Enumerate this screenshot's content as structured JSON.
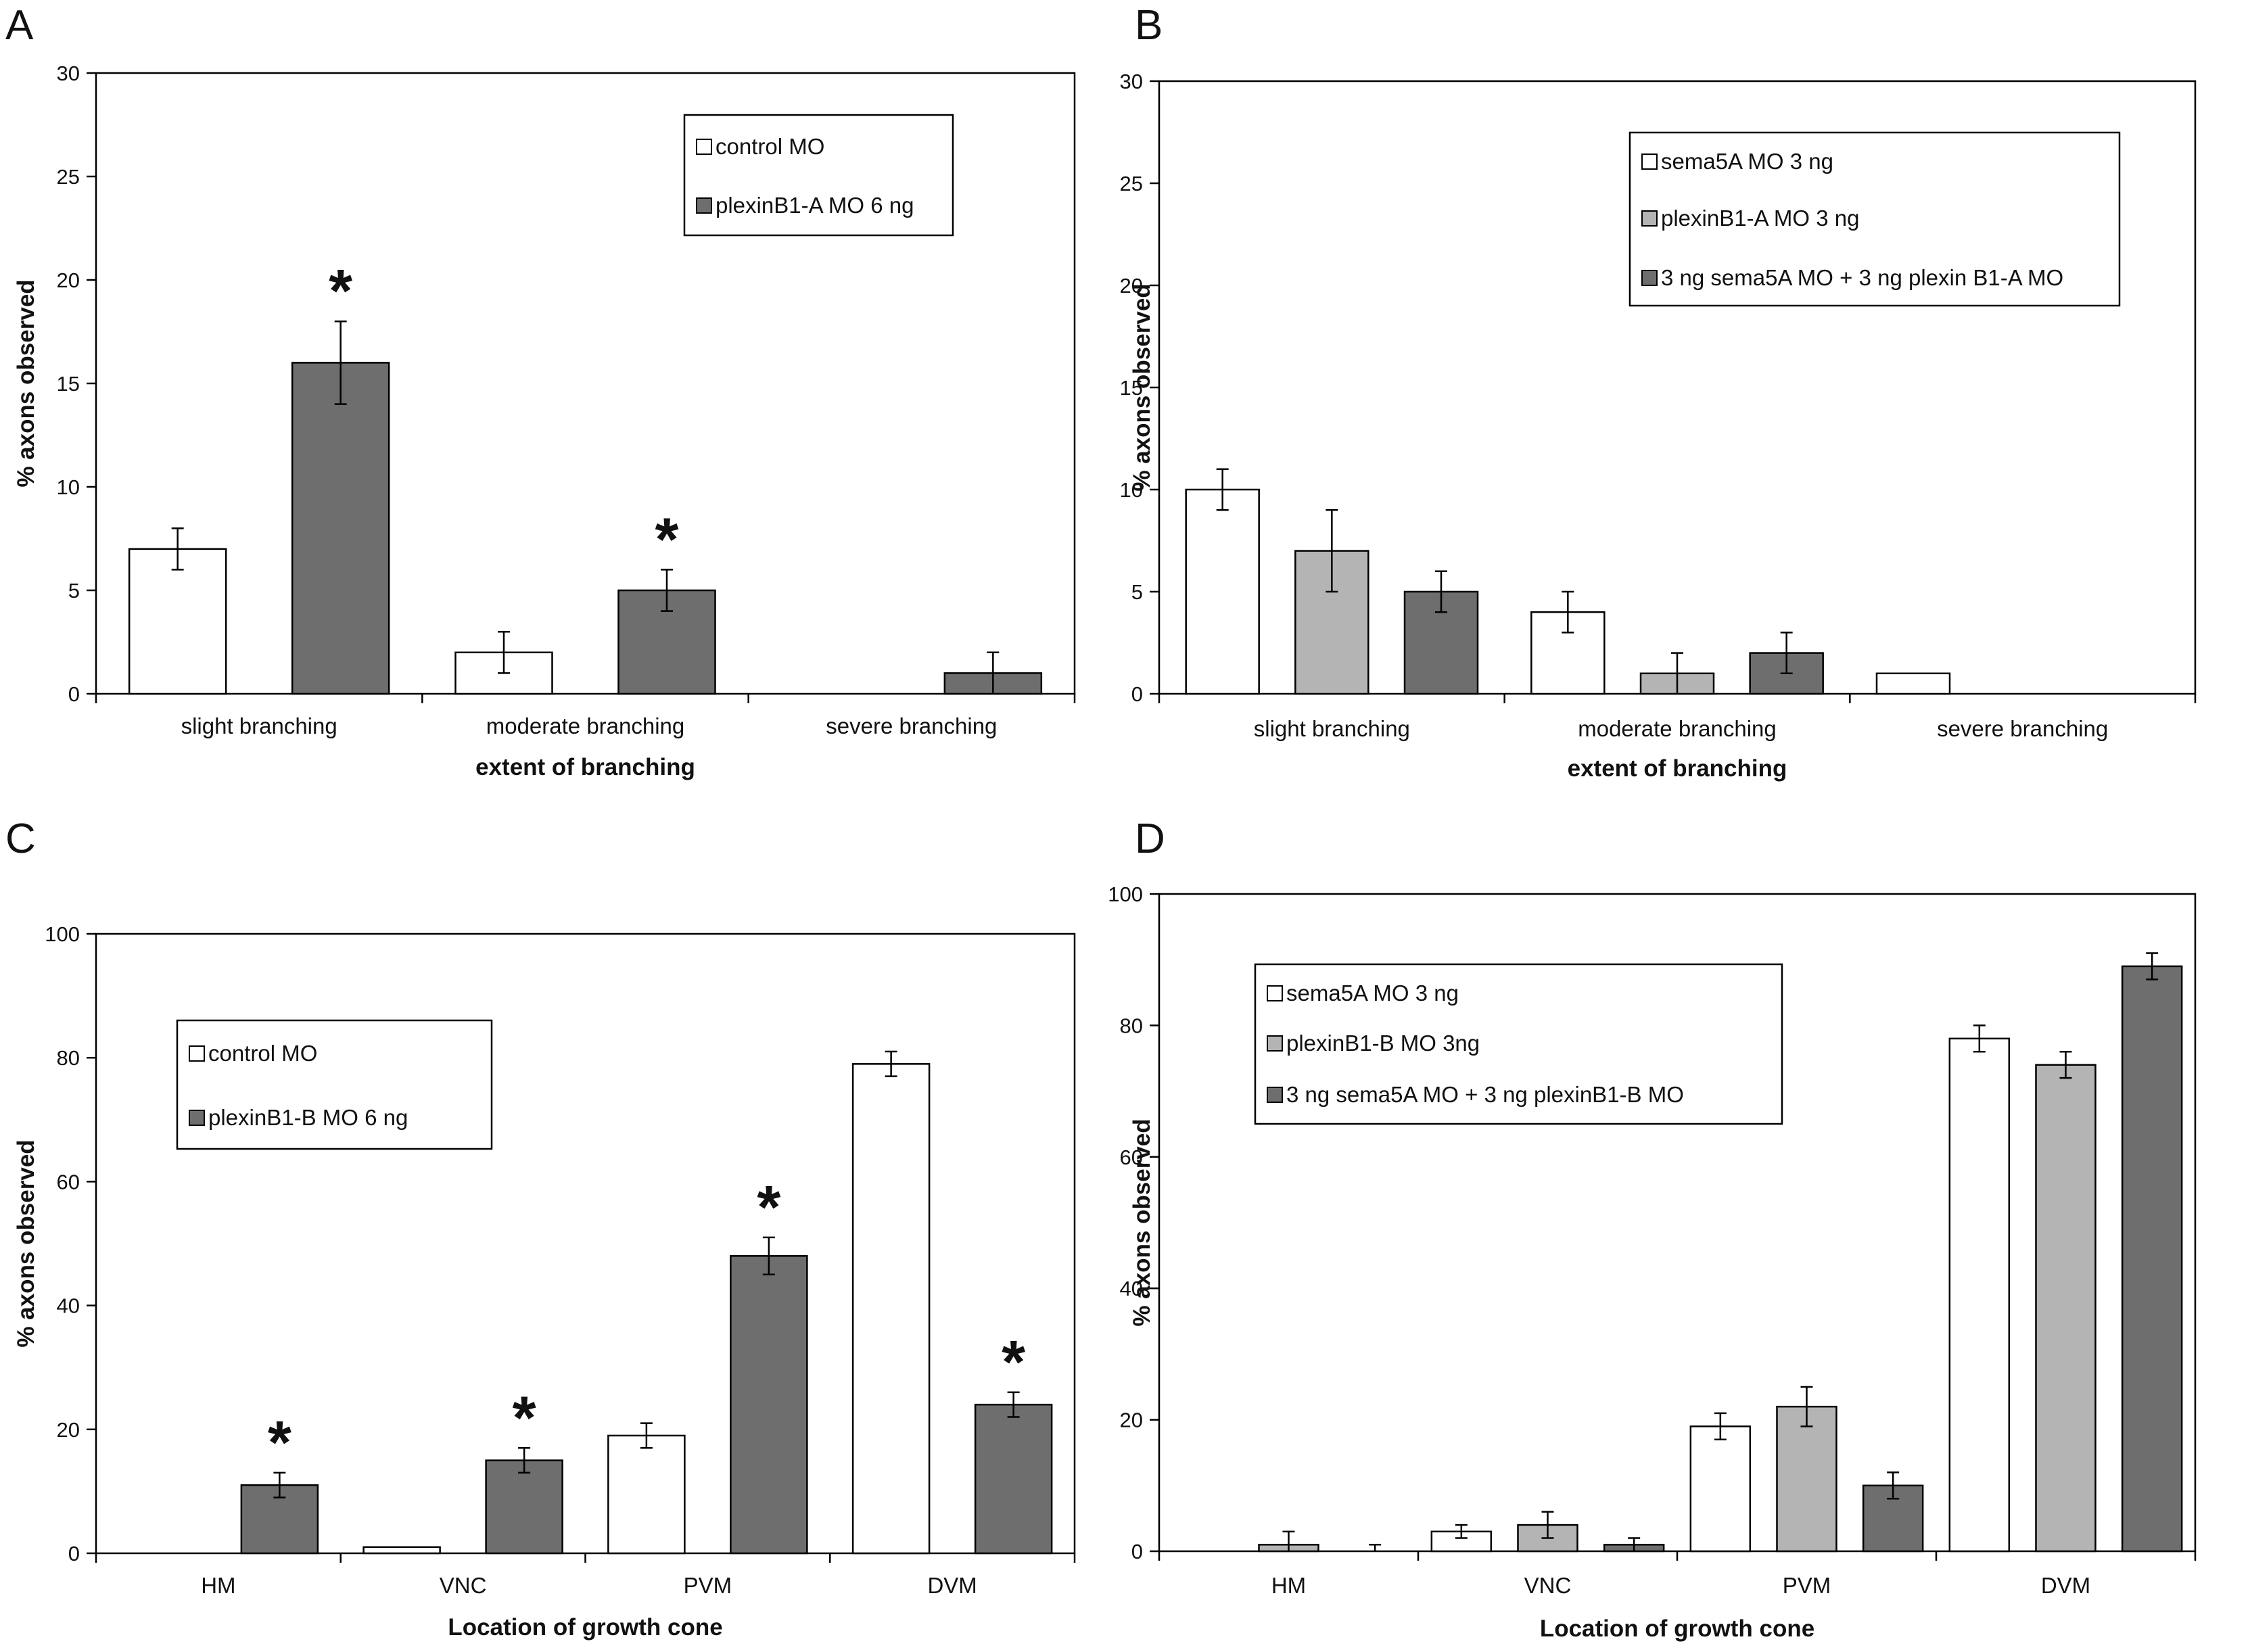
{
  "colors": {
    "white": "#ffffff",
    "light_gray": "#b4b4b4",
    "dark_gray": "#6e6e6e",
    "axis": "#000000"
  },
  "chart_data": [
    {
      "panel": "A",
      "type": "bar",
      "ylabel": "% axons observed",
      "xlabel": "extent of branching",
      "ylim": [
        0,
        30
      ],
      "yticks": [
        0,
        5,
        10,
        15,
        20,
        25,
        30
      ],
      "categories": [
        "slight branching",
        "moderate branching",
        "severe branching"
      ],
      "series": [
        {
          "name": "control MO",
          "color": "white",
          "values": [
            7,
            2,
            0
          ],
          "errors": [
            1,
            1,
            0
          ]
        },
        {
          "name": "plexinB1-A MO 6 ng",
          "color": "dark_gray",
          "values": [
            16,
            5,
            1
          ],
          "errors": [
            2,
            1,
            1
          ]
        }
      ],
      "significance": [
        {
          "series": 1,
          "category": 0,
          "label": "*"
        },
        {
          "series": 1,
          "category": 1,
          "label": "*"
        }
      ],
      "legend_position": "top-right"
    },
    {
      "panel": "B",
      "type": "bar",
      "ylabel": "% axons observed",
      "xlabel": "extent of branching",
      "ylim": [
        0,
        30
      ],
      "yticks": [
        0,
        5,
        10,
        15,
        20,
        25,
        30
      ],
      "categories": [
        "slight branching",
        "moderate branching",
        "severe branching"
      ],
      "series": [
        {
          "name": "sema5A MO 3 ng",
          "color": "white",
          "values": [
            10,
            4,
            1
          ],
          "errors": [
            1,
            1,
            0
          ]
        },
        {
          "name": "plexinB1-A MO 3 ng",
          "color": "light_gray",
          "values": [
            7,
            1,
            0
          ],
          "errors": [
            2,
            1,
            0
          ]
        },
        {
          "name": "3 ng sema5A MO + 3 ng plexin B1-A MO",
          "color": "dark_gray",
          "values": [
            5,
            2,
            0
          ],
          "errors": [
            1,
            1,
            0
          ]
        }
      ],
      "significance": [],
      "legend_position": "top-right"
    },
    {
      "panel": "C",
      "type": "bar",
      "ylabel": "% axons observed",
      "xlabel": "Location of growth cone",
      "ylim": [
        0,
        100
      ],
      "yticks": [
        0,
        20,
        40,
        60,
        80,
        100
      ],
      "categories": [
        "HM",
        "VNC",
        "PVM",
        "DVM"
      ],
      "series": [
        {
          "name": "control MO",
          "color": "white",
          "values": [
            0,
            1,
            19,
            79
          ],
          "errors": [
            0,
            0,
            2,
            2
          ]
        },
        {
          "name": "plexinB1-B MO 6 ng",
          "color": "dark_gray",
          "values": [
            11,
            15,
            48,
            24
          ],
          "errors": [
            2,
            2,
            3,
            2
          ]
        }
      ],
      "significance": [
        {
          "series": 1,
          "category": 0,
          "label": "*"
        },
        {
          "series": 1,
          "category": 1,
          "label": "*"
        },
        {
          "series": 1,
          "category": 2,
          "label": "*"
        },
        {
          "series": 1,
          "category": 3,
          "label": "*"
        }
      ],
      "legend_position": "top-left"
    },
    {
      "panel": "D",
      "type": "bar",
      "ylabel": "% axons observed",
      "xlabel": "Location of growth cone",
      "ylim": [
        0,
        100
      ],
      "yticks": [
        0,
        20,
        40,
        60,
        80,
        100
      ],
      "categories": [
        "HM",
        "VNC",
        "PVM",
        "DVM"
      ],
      "series": [
        {
          "name": "sema5A MO 3 ng",
          "color": "white",
          "values": [
            0,
            3,
            19,
            78
          ],
          "errors": [
            0,
            1,
            2,
            2
          ]
        },
        {
          "name": "plexinB1-B MO 3ng",
          "color": "light_gray",
          "values": [
            1,
            4,
            22,
            74
          ],
          "errors": [
            2,
            2,
            3,
            2
          ]
        },
        {
          "name": "3 ng sema5A MO + 3 ng plexinB1-B MO",
          "color": "dark_gray",
          "values": [
            0,
            1,
            10,
            89
          ],
          "errors": [
            1,
            1,
            2,
            2
          ]
        }
      ],
      "significance": [],
      "legend_position": "top-left"
    }
  ]
}
